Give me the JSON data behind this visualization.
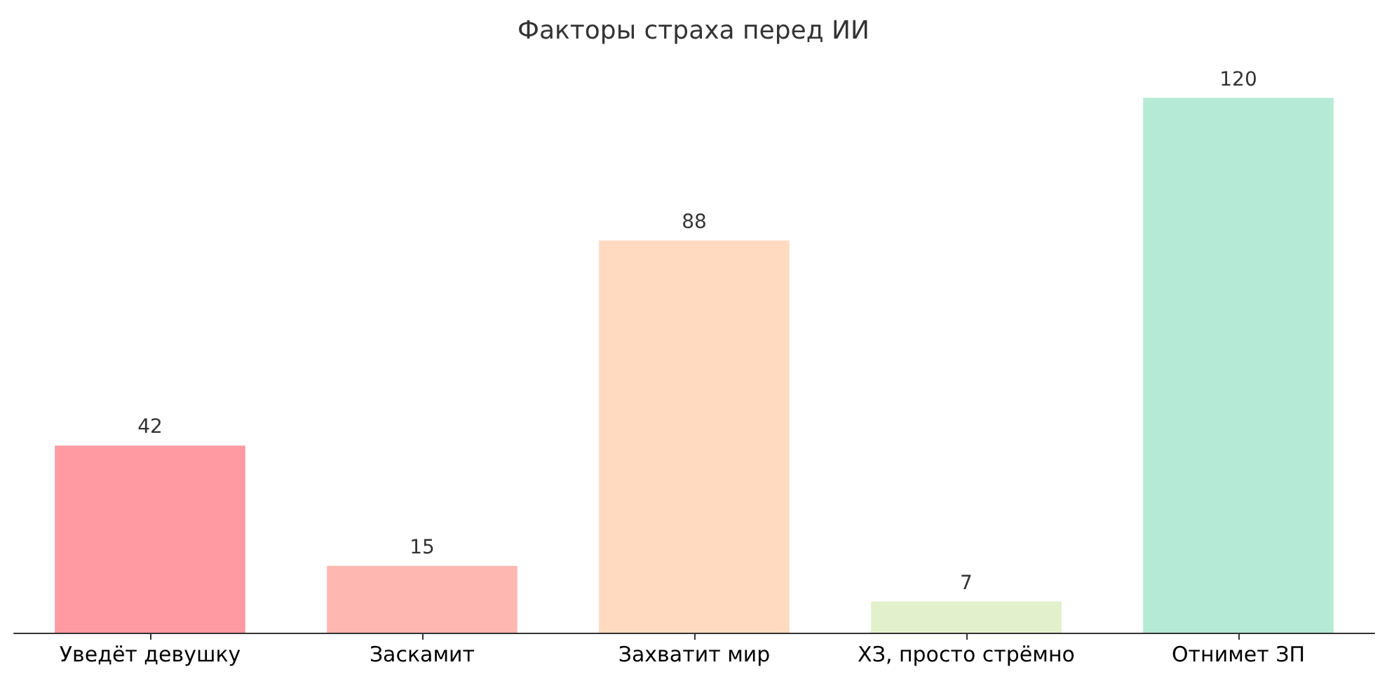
{
  "chart_data": {
    "type": "bar",
    "title": "Факторы страха перед ИИ",
    "categories": [
      "Уведёт девушку",
      "Заскамит",
      "Захватит мир",
      "ХЗ, просто стрёмно",
      "Отнимет ЗП"
    ],
    "values": [
      42,
      15,
      88,
      7,
      120
    ],
    "colors": [
      "#ff9aa2",
      "#ffb7b2",
      "#ffdac1",
      "#e2f0cb",
      "#b5ead7"
    ],
    "data_labels": true,
    "tick_labels": "x"
  }
}
